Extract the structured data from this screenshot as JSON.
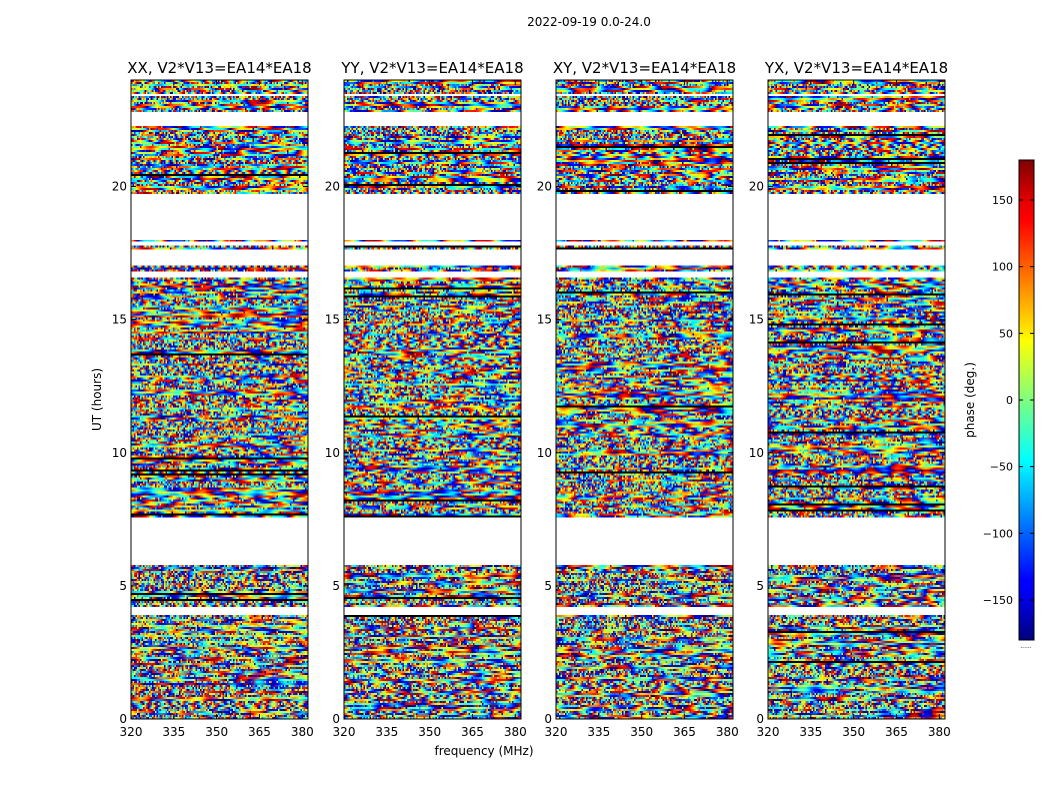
{
  "figure_title": "2022-09-19 0.0-24.0",
  "colorbar_label": "phase (deg.)",
  "colorbar_ticks": [
    -150,
    -100,
    -50,
    0,
    50,
    100,
    150
  ],
  "colorbar_extra": "......",
  "colors": {
    "background": "#ffffff",
    "axis": "#000000",
    "colormap": "jet"
  },
  "chart_data": [
    {
      "type": "heatmap",
      "title": "XX, V2*V13=EA14*EA18",
      "xlabel": "frequency (MHz)",
      "ylabel": "UT (hours)",
      "xlim": [
        320,
        382
      ],
      "ylim": [
        0,
        24
      ],
      "xticks": [
        320,
        335,
        350,
        365,
        380
      ],
      "yticks": [
        0,
        5,
        10,
        15,
        20
      ],
      "clim": [
        -180,
        180
      ],
      "colormap": "jet",
      "data_bands_ut": [
        [
          0.0,
          3.9
        ],
        [
          4.2,
          5.8
        ],
        [
          7.6,
          16.6
        ],
        [
          16.8,
          17.0
        ],
        [
          17.6,
          17.8
        ],
        [
          17.9,
          18.0
        ],
        [
          19.7,
          22.3
        ],
        [
          22.8,
          23.4
        ],
        [
          23.5,
          24.0
        ]
      ],
      "seed": 11
    },
    {
      "type": "heatmap",
      "title": "YY, V2*V13=EA14*EA18",
      "xlabel": "frequency (MHz)",
      "ylabel": "",
      "xlim": [
        320,
        382
      ],
      "ylim": [
        0,
        24
      ],
      "xticks": [
        320,
        335,
        350,
        365,
        380
      ],
      "yticks": [
        0,
        5,
        10,
        15,
        20
      ],
      "clim": [
        -180,
        180
      ],
      "colormap": "jet",
      "data_bands_ut": [
        [
          0.0,
          3.9
        ],
        [
          4.2,
          5.8
        ],
        [
          7.6,
          16.6
        ],
        [
          16.8,
          17.0
        ],
        [
          17.6,
          17.8
        ],
        [
          17.9,
          18.0
        ],
        [
          19.7,
          22.3
        ],
        [
          22.8,
          23.4
        ],
        [
          23.5,
          24.0
        ]
      ],
      "seed": 23
    },
    {
      "type": "heatmap",
      "title": "XY, V2*V13=EA14*EA18",
      "xlabel": "",
      "ylabel": "",
      "xlim": [
        320,
        382
      ],
      "ylim": [
        0,
        24
      ],
      "xticks": [
        320,
        335,
        350,
        365,
        380
      ],
      "yticks": [
        0,
        5,
        10,
        15,
        20
      ],
      "clim": [
        -180,
        180
      ],
      "colormap": "jet",
      "data_bands_ut": [
        [
          0.0,
          3.9
        ],
        [
          4.2,
          5.8
        ],
        [
          7.6,
          16.6
        ],
        [
          16.8,
          17.0
        ],
        [
          17.6,
          17.8
        ],
        [
          17.9,
          18.0
        ],
        [
          19.7,
          22.3
        ],
        [
          22.8,
          23.4
        ],
        [
          23.5,
          24.0
        ]
      ],
      "seed": 37
    },
    {
      "type": "heatmap",
      "title": "YX, V2*V13=EA14*EA18",
      "xlabel": "",
      "ylabel": "",
      "xlim": [
        320,
        382
      ],
      "ylim": [
        0,
        24
      ],
      "xticks": [
        320,
        335,
        350,
        365,
        380
      ],
      "yticks": [
        0,
        5,
        10,
        15,
        20
      ],
      "clim": [
        -180,
        180
      ],
      "colormap": "jet",
      "data_bands_ut": [
        [
          0.0,
          3.9
        ],
        [
          4.2,
          5.8
        ],
        [
          7.6,
          16.6
        ],
        [
          16.8,
          17.0
        ],
        [
          17.6,
          17.8
        ],
        [
          17.9,
          18.0
        ],
        [
          19.7,
          22.3
        ],
        [
          22.8,
          23.4
        ],
        [
          23.5,
          24.0
        ]
      ],
      "seed": 51
    }
  ]
}
